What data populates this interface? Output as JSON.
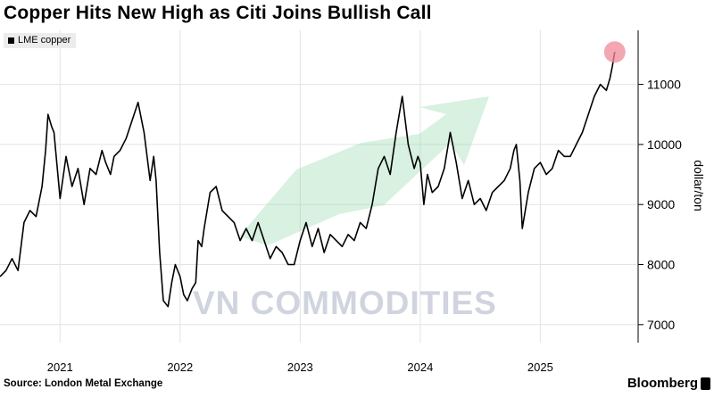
{
  "chart_data": {
    "type": "line",
    "title": "Copper Hits New High as Citi Joins Bullish Call",
    "ylabel": "dollar/ton",
    "xlabel": "",
    "x_tick_labels": [
      "2021",
      "2022",
      "2023",
      "2024",
      "2025"
    ],
    "y_ticks": [
      7000,
      8000,
      9000,
      10000,
      11000
    ],
    "xlim": [
      2020.5,
      2025.8
    ],
    "ylim": [
      6700,
      11900
    ],
    "legend": "top-left",
    "grid": true,
    "highlight_point": {
      "x": 2025.62,
      "y": 11540
    },
    "series": [
      {
        "name": "LME copper",
        "color": "#000000",
        "x": [
          2020.5,
          2020.55,
          2020.6,
          2020.65,
          2020.7,
          2020.75,
          2020.8,
          2020.85,
          2020.88,
          2020.9,
          2020.93,
          2020.95,
          2021.0,
          2021.05,
          2021.1,
          2021.15,
          2021.2,
          2021.25,
          2021.3,
          2021.35,
          2021.38,
          2021.42,
          2021.45,
          2021.5,
          2021.55,
          2021.6,
          2021.65,
          2021.7,
          2021.75,
          2021.78,
          2021.8,
          2021.83,
          2021.86,
          2021.9,
          2021.93,
          2021.96,
          2022.0,
          2022.03,
          2022.06,
          2022.1,
          2022.13,
          2022.15,
          2022.18,
          2022.2,
          2022.25,
          2022.3,
          2022.35,
          2022.4,
          2022.45,
          2022.5,
          2022.55,
          2022.6,
          2022.65,
          2022.7,
          2022.75,
          2022.8,
          2022.85,
          2022.9,
          2022.95,
          2023.0,
          2023.05,
          2023.1,
          2023.15,
          2023.2,
          2023.25,
          2023.3,
          2023.35,
          2023.4,
          2023.45,
          2023.5,
          2023.55,
          2023.6,
          2023.65,
          2023.7,
          2023.75,
          2023.8,
          2023.85,
          2023.9,
          2023.95,
          2023.98,
          2024.0,
          2024.03,
          2024.06,
          2024.1,
          2024.15,
          2024.2,
          2024.25,
          2024.3,
          2024.35,
          2024.4,
          2024.45,
          2024.5,
          2024.55,
          2024.6,
          2024.65,
          2024.7,
          2024.75,
          2024.78,
          2024.8,
          2024.83,
          2024.85,
          2024.9,
          2024.95,
          2025.0,
          2025.05,
          2025.1,
          2025.15,
          2025.2,
          2025.25,
          2025.3,
          2025.35,
          2025.4,
          2025.45,
          2025.5,
          2025.55,
          2025.58,
          2025.6,
          2025.62
        ],
        "values": [
          7800,
          7900,
          8100,
          7900,
          8700,
          8900,
          8800,
          9300,
          9900,
          10500,
          10300,
          10200,
          9100,
          9800,
          9300,
          9600,
          9000,
          9600,
          9500,
          9900,
          9700,
          9500,
          9800,
          9900,
          10100,
          10400,
          10700,
          10200,
          9400,
          9800,
          9400,
          8200,
          7400,
          7300,
          7700,
          8000,
          7800,
          7500,
          7400,
          7600,
          7700,
          8400,
          8300,
          8600,
          9200,
          9300,
          8900,
          8800,
          8700,
          8400,
          8600,
          8400,
          8700,
          8400,
          8100,
          8300,
          8200,
          8000,
          8000,
          8400,
          8700,
          8300,
          8600,
          8200,
          8500,
          8400,
          8300,
          8500,
          8400,
          8700,
          8600,
          9000,
          9600,
          9800,
          9500,
          10200,
          10800,
          10000,
          9600,
          9800,
          9700,
          9000,
          9500,
          9200,
          9300,
          9600,
          10200,
          9700,
          9100,
          9400,
          9000,
          9100,
          8900,
          9200,
          9300,
          9400,
          9600,
          9900,
          10000,
          9400,
          8600,
          9200,
          9600,
          9700,
          9500,
          9600,
          9900,
          9800,
          9800,
          10000,
          10200,
          10500,
          10800,
          11000,
          10900,
          11100,
          11300,
          11540
        ]
      }
    ]
  },
  "legend": {
    "label": "LME copper"
  },
  "footer": {
    "source": "Source: London Metal Exchange",
    "brand": "Bloomberg"
  },
  "watermark": {
    "text": "VN COMMODITIES"
  },
  "colors": {
    "line": "#000000",
    "highlight": "#f08a9a",
    "watermark": "#9ba5c2",
    "arrow": "#8fd6a6"
  }
}
